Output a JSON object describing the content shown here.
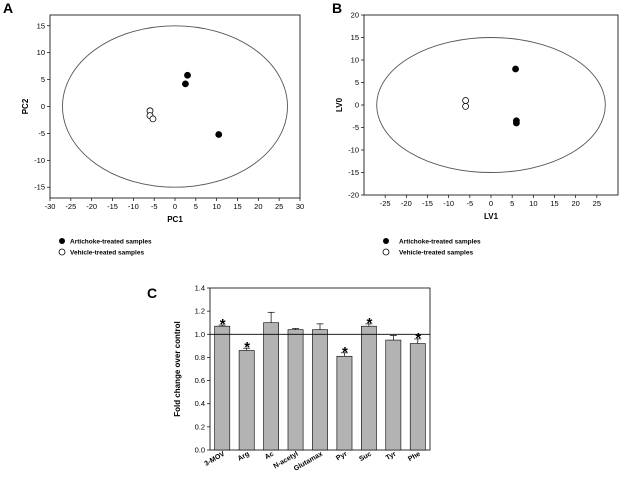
{
  "figure": {
    "panel_letters": [
      "A",
      "B",
      "C"
    ]
  },
  "chart_data": [
    {
      "panel": "A",
      "type": "scatter",
      "xlabel": "PC1",
      "ylabel": "PC2",
      "xlim": [
        -30,
        30
      ],
      "ylim": [
        -17,
        17
      ],
      "xticks": [
        -30,
        -25,
        -20,
        -15,
        -10,
        -5,
        0,
        5,
        10,
        15,
        20,
        25,
        30
      ],
      "yticks": [
        -15,
        -10,
        -5,
        0,
        5,
        10,
        15
      ],
      "ellipse": {
        "center": [
          0,
          0
        ],
        "rx": 27,
        "ry": 15
      },
      "series": [
        {
          "name": "Artichoke-treated samples",
          "marker": "filled",
          "points": [
            [
              3,
              5.8
            ],
            [
              2.5,
              4.2
            ],
            [
              10.5,
              -5.2
            ]
          ]
        },
        {
          "name": "Vehicle-treated samples",
          "marker": "open",
          "points": [
            [
              -6,
              -0.8
            ],
            [
              -6,
              -1.7
            ],
            [
              -5.3,
              -2.3
            ]
          ]
        }
      ],
      "legend": [
        "Artichoke-treated samples",
        "Vehicle-treated samples"
      ]
    },
    {
      "panel": "B",
      "type": "scatter",
      "xlabel": "LV1",
      "ylabel": "LV0",
      "xlim": [
        -30,
        30
      ],
      "ylim": [
        -20,
        20
      ],
      "xticks": [
        -25,
        -20,
        -15,
        -10,
        -5,
        0,
        5,
        10,
        15,
        20,
        25
      ],
      "yticks": [
        -20,
        -15,
        -10,
        -5,
        0,
        5,
        10,
        15,
        20
      ],
      "ellipse": {
        "center": [
          0,
          0
        ],
        "rx": 27,
        "ry": 15
      },
      "series": [
        {
          "name": "Artichoke-treated samples",
          "marker": "filled",
          "points": [
            [
              5.8,
              8
            ],
            [
              6,
              -3.5
            ],
            [
              6,
              -4
            ]
          ]
        },
        {
          "name": "Vehicle-treated samples",
          "marker": "open",
          "points": [
            [
              -6,
              1
            ],
            [
              -6,
              -0.3
            ]
          ]
        }
      ],
      "legend": [
        "Artichoke-treated samples",
        "Vehicle-treated samples"
      ]
    },
    {
      "panel": "C",
      "type": "bar",
      "ylabel": "Fold change over control",
      "ylim": [
        0,
        1.4
      ],
      "yticks": [
        "0.0",
        "0.2",
        "0.4",
        "0.6",
        "0.8",
        "1.0",
        "1.2",
        "1.4"
      ],
      "reference_line": 1.0,
      "categories": [
        "3-MOV",
        "Arg",
        "Ac",
        "N-acetyl",
        "Glutamax",
        "Pyr",
        "Suc",
        "Tyr",
        "Phe"
      ],
      "values": [
        1.07,
        0.86,
        1.1,
        1.04,
        1.04,
        0.81,
        1.07,
        0.95,
        0.92
      ],
      "errors": [
        0.01,
        0.02,
        0.09,
        0.01,
        0.05,
        0.03,
        0.02,
        0.04,
        0.04
      ],
      "significant": [
        true,
        true,
        false,
        false,
        false,
        true,
        true,
        false,
        true
      ],
      "significance_symbol": "*"
    }
  ]
}
